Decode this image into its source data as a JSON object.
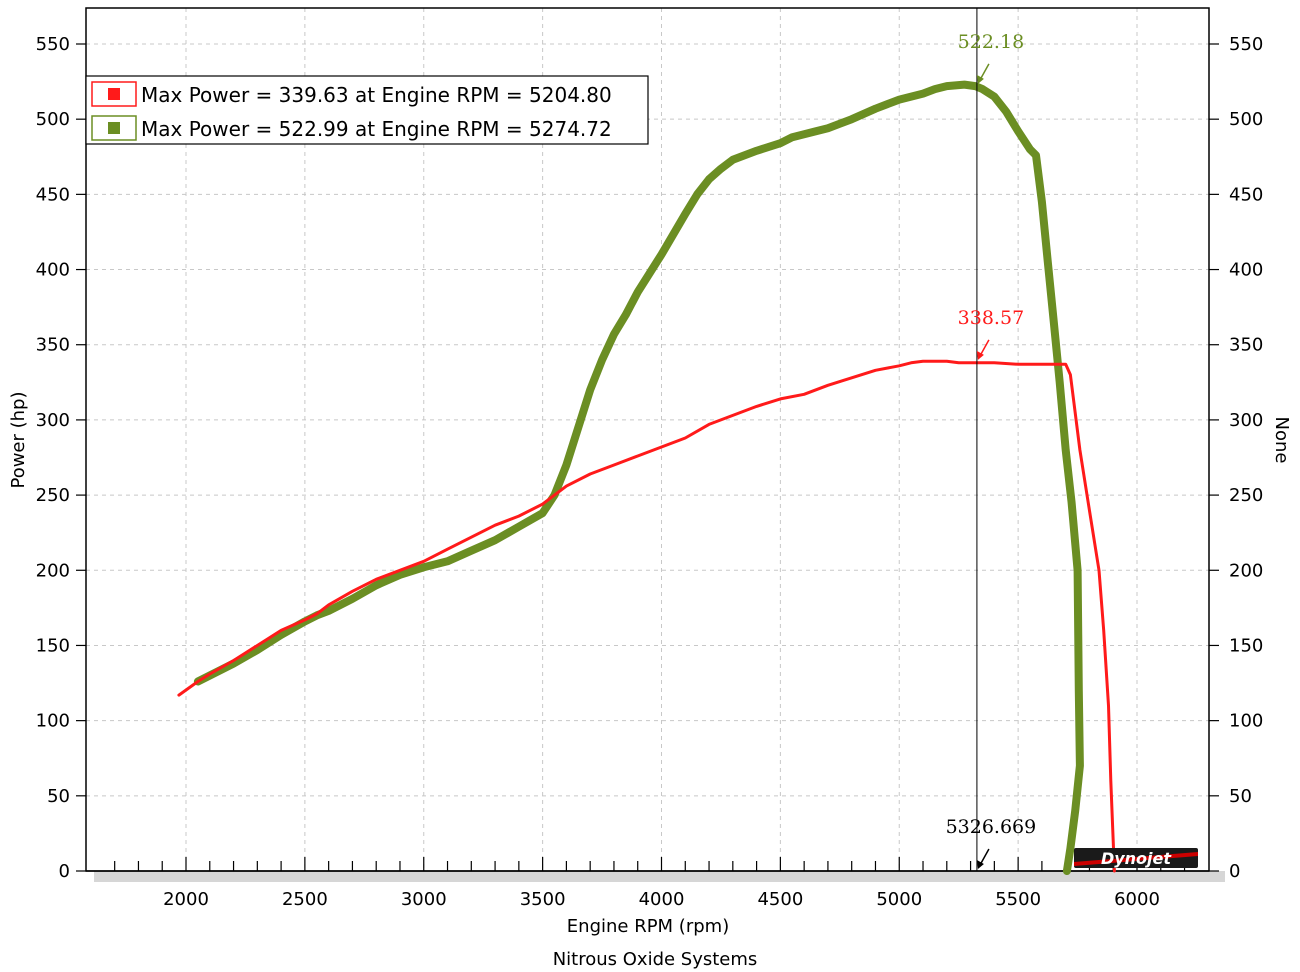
{
  "chart_data": {
    "type": "line",
    "xlabel": "Engine RPM (rpm)",
    "ylabel": "Power (hp)",
    "y2label": "None",
    "subtitle": "Nitrous Oxide Systems",
    "xlim": [
      1600,
      6300
    ],
    "ylim": [
      0,
      575
    ],
    "x_ticks": [
      2000,
      2500,
      3000,
      3500,
      4000,
      4500,
      5000,
      5500,
      6000
    ],
    "y_ticks": [
      0,
      50,
      100,
      150,
      200,
      250,
      300,
      350,
      400,
      450,
      500,
      550
    ],
    "grid": true,
    "legend_position": "top-left",
    "colors": {
      "red": "#ff1a1a",
      "green": "#6b8e23",
      "frame": "#000000",
      "grid": "#c8c8c8",
      "bottom_bar": "#d6d6d6"
    },
    "legend": [
      {
        "label": "Max Power = 339.63 at Engine RPM = 5204.80",
        "color": "#ff1a1a"
      },
      {
        "label": "Max Power = 522.99 at Engine RPM = 5274.72",
        "color": "#6b8e23"
      }
    ],
    "series": [
      {
        "color": "#ff1a1a",
        "points": [
          [
            1970,
            117
          ],
          [
            2050,
            126
          ],
          [
            2100,
            131
          ],
          [
            2200,
            140
          ],
          [
            2300,
            150
          ],
          [
            2400,
            160
          ],
          [
            2500,
            167
          ],
          [
            2550,
            171
          ],
          [
            2600,
            177
          ],
          [
            2700,
            186
          ],
          [
            2800,
            194
          ],
          [
            2900,
            200
          ],
          [
            3000,
            206
          ],
          [
            3100,
            214
          ],
          [
            3200,
            222
          ],
          [
            3300,
            230
          ],
          [
            3400,
            236
          ],
          [
            3500,
            244
          ],
          [
            3600,
            256
          ],
          [
            3700,
            264
          ],
          [
            3800,
            270
          ],
          [
            3900,
            276
          ],
          [
            4000,
            282
          ],
          [
            4100,
            288
          ],
          [
            4200,
            297
          ],
          [
            4300,
            303
          ],
          [
            4400,
            309
          ],
          [
            4500,
            314
          ],
          [
            4600,
            317
          ],
          [
            4700,
            323
          ],
          [
            4800,
            328
          ],
          [
            4900,
            333
          ],
          [
            5000,
            336
          ],
          [
            5050,
            338
          ],
          [
            5100,
            339
          ],
          [
            5200,
            339
          ],
          [
            5250,
            338
          ],
          [
            5300,
            338
          ],
          [
            5400,
            338
          ],
          [
            5500,
            337
          ],
          [
            5600,
            337
          ],
          [
            5700,
            337
          ],
          [
            5720,
            330
          ],
          [
            5760,
            280
          ],
          [
            5800,
            240
          ],
          [
            5840,
            200
          ],
          [
            5860,
            160
          ],
          [
            5880,
            110
          ],
          [
            5890,
            60
          ],
          [
            5900,
            20
          ],
          [
            5905,
            0
          ]
        ]
      },
      {
        "color": "#6b8e23",
        "points": [
          [
            2050,
            126
          ],
          [
            2100,
            130
          ],
          [
            2200,
            138
          ],
          [
            2300,
            147
          ],
          [
            2400,
            157
          ],
          [
            2500,
            166
          ],
          [
            2550,
            170
          ],
          [
            2600,
            173
          ],
          [
            2700,
            181
          ],
          [
            2800,
            190
          ],
          [
            2900,
            197
          ],
          [
            3000,
            202
          ],
          [
            3100,
            206
          ],
          [
            3200,
            213
          ],
          [
            3300,
            220
          ],
          [
            3400,
            229
          ],
          [
            3500,
            238
          ],
          [
            3550,
            250
          ],
          [
            3600,
            270
          ],
          [
            3650,
            295
          ],
          [
            3700,
            320
          ],
          [
            3750,
            340
          ],
          [
            3800,
            357
          ],
          [
            3850,
            370
          ],
          [
            3900,
            385
          ],
          [
            4000,
            410
          ],
          [
            4100,
            437
          ],
          [
            4150,
            450
          ],
          [
            4200,
            460
          ],
          [
            4250,
            467
          ],
          [
            4300,
            473
          ],
          [
            4400,
            479
          ],
          [
            4500,
            484
          ],
          [
            4550,
            488
          ],
          [
            4600,
            490
          ],
          [
            4700,
            494
          ],
          [
            4800,
            500
          ],
          [
            4900,
            507
          ],
          [
            4950,
            510
          ],
          [
            5000,
            513
          ],
          [
            5100,
            517
          ],
          [
            5150,
            520
          ],
          [
            5200,
            522
          ],
          [
            5274,
            523
          ],
          [
            5320,
            522
          ],
          [
            5350,
            520
          ],
          [
            5400,
            515
          ],
          [
            5450,
            505
          ],
          [
            5500,
            492
          ],
          [
            5550,
            480
          ],
          [
            5575,
            476
          ],
          [
            5600,
            445
          ],
          [
            5625,
            405
          ],
          [
            5650,
            365
          ],
          [
            5675,
            325
          ],
          [
            5700,
            280
          ],
          [
            5725,
            245
          ],
          [
            5750,
            200
          ],
          [
            5755,
            120
          ],
          [
            5760,
            70
          ],
          [
            5740,
            40
          ],
          [
            5720,
            15
          ],
          [
            5705,
            0
          ]
        ]
      }
    ],
    "annotations": [
      {
        "text": "522.18",
        "x": 5326.669,
        "y": 522.18,
        "color": "#6b8e23"
      },
      {
        "text": "338.57",
        "x": 5326.669,
        "y": 338.57,
        "color": "#ff1a1a"
      },
      {
        "text": "5326.669",
        "x": 5326.669,
        "y": 0,
        "color": "#000000"
      }
    ],
    "cursor_x": 5326.669,
    "logo": "Dynojet"
  }
}
